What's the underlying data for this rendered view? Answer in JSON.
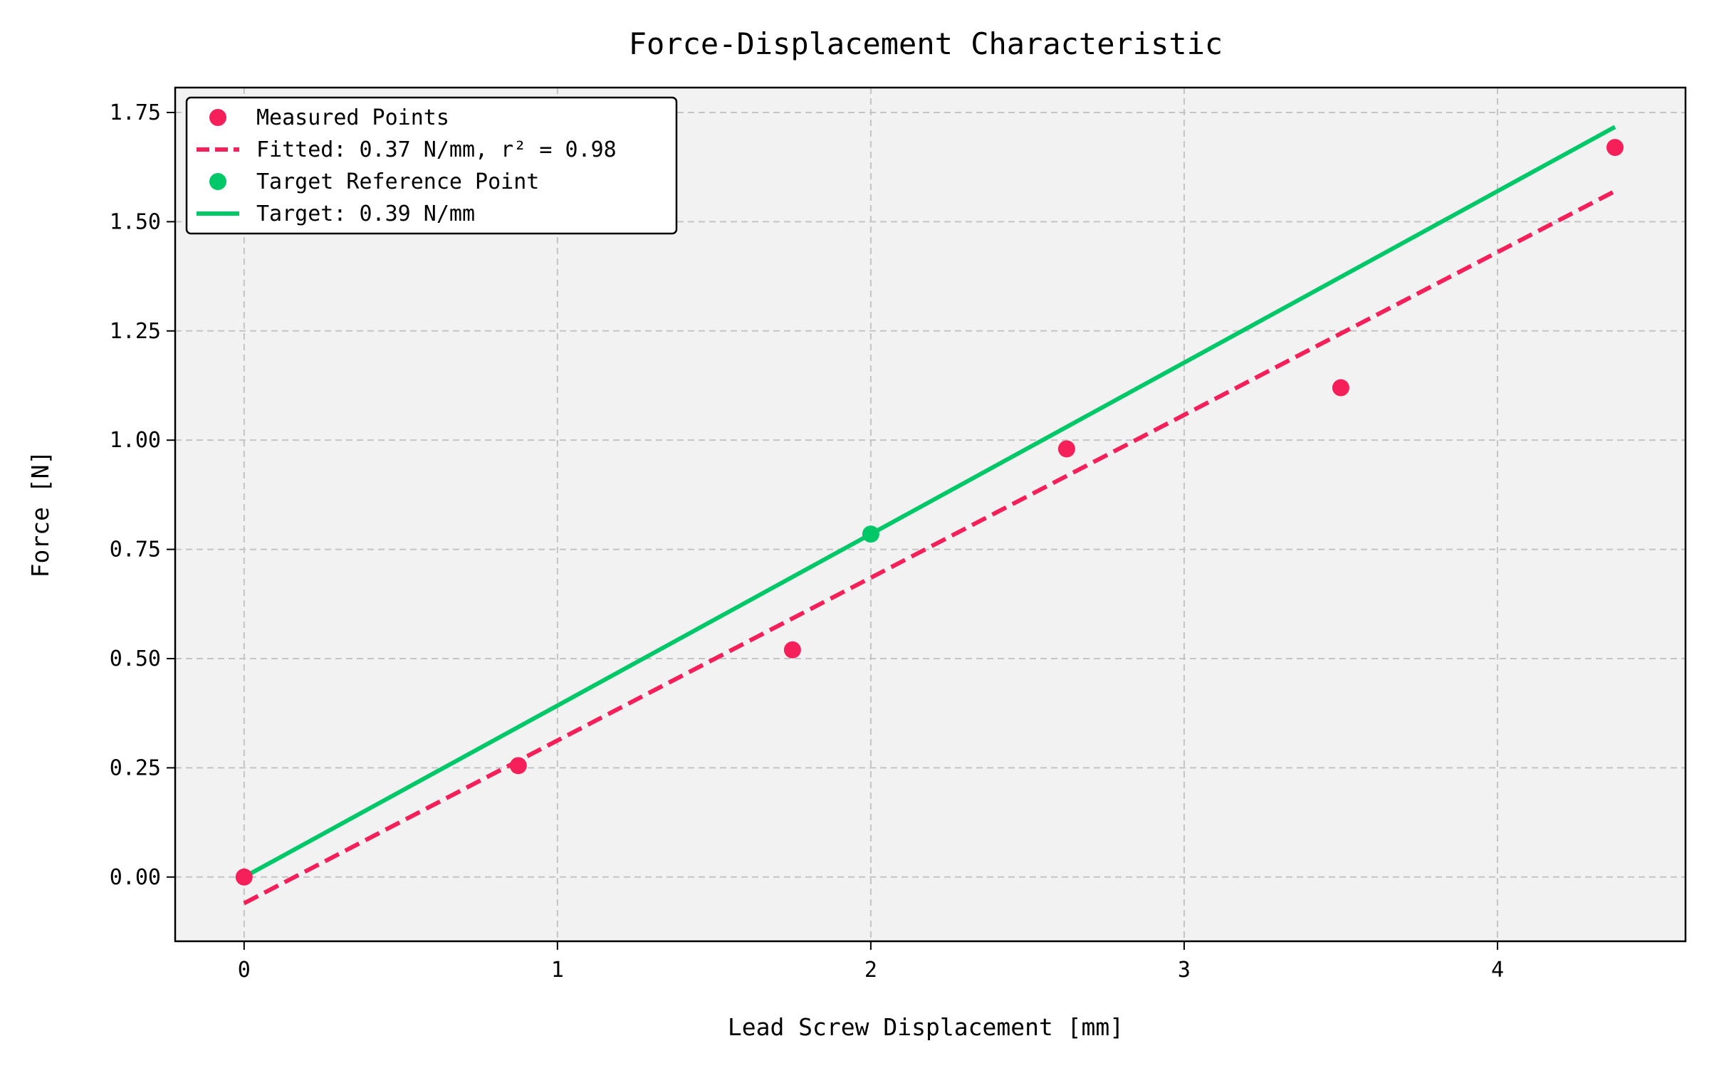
{
  "chart_data": {
    "type": "scatter",
    "title": "Force-Displacement Characteristic",
    "xlabel": "Lead Screw Displacement [mm]",
    "ylabel": "Force [N]",
    "xlim": [
      -0.22,
      4.6
    ],
    "ylim": [
      -0.147,
      1.807
    ],
    "x_ticks": [
      0,
      1,
      2,
      3,
      4
    ],
    "y_ticks": [
      0.0,
      0.25,
      0.5,
      0.75,
      1.0,
      1.25,
      1.5,
      1.75
    ],
    "x_tick_labels": [
      "0",
      "1",
      "2",
      "3",
      "4"
    ],
    "y_tick_labels": [
      "0.00",
      "0.25",
      "0.50",
      "0.75",
      "1.00",
      "1.25",
      "1.50",
      "1.75"
    ],
    "grid": true,
    "legend_position": "top-left",
    "background": "#f2f2f2",
    "series": [
      {
        "name": "Measured Points",
        "kind": "scatter",
        "color": "#f5205a",
        "x": [
          0.0,
          0.875,
          1.75,
          2.625,
          3.5,
          4.375
        ],
        "y": [
          0.0,
          0.255,
          0.52,
          0.98,
          1.12,
          1.67
        ]
      },
      {
        "name": "Fitted: 0.37 N/mm, r² = 0.98",
        "kind": "line",
        "style": "dashed",
        "color": "#f5205a",
        "x": [
          0.0,
          4.375
        ],
        "y": [
          -0.06,
          1.57
        ]
      },
      {
        "name": "Target Reference Point",
        "kind": "scatter",
        "color": "#00c869",
        "x": [
          2.0
        ],
        "y": [
          0.785
        ]
      },
      {
        "name": "Target: 0.39 N/mm",
        "kind": "line",
        "style": "solid",
        "color": "#00c869",
        "x": [
          0.0,
          4.375
        ],
        "y": [
          0.0,
          1.717
        ]
      }
    ]
  }
}
